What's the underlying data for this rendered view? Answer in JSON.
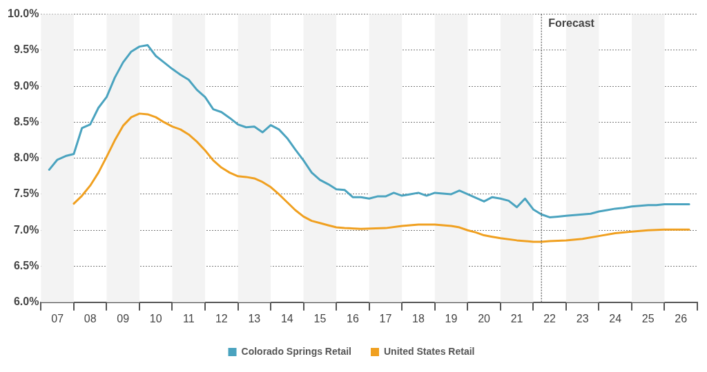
{
  "chart_data": {
    "type": "line",
    "series": [
      {
        "name": "Colorado Springs Retail",
        "color": "#4aa3bf",
        "x": [
          6.75,
          7,
          7.25,
          7.5,
          7.75,
          8,
          8.25,
          8.5,
          8.75,
          9,
          9.25,
          9.5,
          9.75,
          10,
          10.25,
          10.5,
          10.75,
          11,
          11.25,
          11.5,
          11.75,
          12,
          12.25,
          12.5,
          12.75,
          13,
          13.25,
          13.5,
          13.75,
          14,
          14.25,
          14.5,
          14.75,
          15,
          15.25,
          15.5,
          15.75,
          16,
          16.25,
          16.5,
          16.75,
          17,
          17.25,
          17.5,
          17.75,
          18,
          18.25,
          18.5,
          18.75,
          19,
          19.25,
          19.5,
          19.75,
          20,
          20.25,
          20.5,
          20.75,
          21,
          21.25,
          21.5,
          21.75,
          22,
          22.25,
          22.5,
          22.75,
          23,
          23.25,
          23.5,
          23.75,
          24,
          24.25,
          24.5,
          24.75,
          25,
          25.25,
          25.5,
          25.75,
          26,
          26.25
        ],
        "values": [
          7.84,
          7.98,
          8.03,
          8.06,
          8.42,
          8.47,
          8.7,
          8.85,
          9.12,
          9.33,
          9.48,
          9.55,
          9.57,
          9.42,
          9.33,
          9.24,
          9.16,
          9.09,
          8.95,
          8.85,
          8.68,
          8.64,
          8.56,
          8.47,
          8.43,
          8.44,
          8.36,
          8.46,
          8.4,
          8.28,
          8.12,
          7.97,
          7.8,
          7.7,
          7.64,
          7.57,
          7.56,
          7.46,
          7.46,
          7.44,
          7.47,
          7.47,
          7.52,
          7.48,
          7.5,
          7.52,
          7.48,
          7.52,
          7.51,
          7.5,
          7.55,
          7.5,
          7.45,
          7.4,
          7.46,
          7.44,
          7.41,
          7.32,
          7.44,
          7.29,
          7.22,
          7.18,
          7.19,
          7.2,
          7.21,
          7.22,
          7.23,
          7.26,
          7.28,
          7.3,
          7.31,
          7.33,
          7.34,
          7.35,
          7.35,
          7.36,
          7.36,
          7.36,
          7.36
        ]
      },
      {
        "name": "United States Retail",
        "color": "#f0a020",
        "x": [
          7.5,
          7.75,
          8,
          8.25,
          8.5,
          8.75,
          9,
          9.25,
          9.5,
          9.75,
          10,
          10.25,
          10.5,
          10.75,
          11,
          11.25,
          11.5,
          11.75,
          12,
          12.25,
          12.5,
          12.75,
          13,
          13.25,
          13.5,
          13.75,
          14,
          14.25,
          14.5,
          14.75,
          15,
          15.25,
          15.5,
          15.75,
          16.25,
          17,
          17.5,
          18,
          18.5,
          19,
          19.25,
          19.5,
          19.75,
          20,
          20.25,
          20.5,
          21,
          21.5,
          21.75,
          22,
          22.5,
          23,
          23.5,
          24,
          24.5,
          25,
          25.5,
          26.25
        ],
        "values": [
          7.37,
          7.48,
          7.62,
          7.8,
          8.02,
          8.25,
          8.45,
          8.57,
          8.62,
          8.61,
          8.57,
          8.5,
          8.44,
          8.4,
          8.33,
          8.23,
          8.11,
          7.97,
          7.87,
          7.8,
          7.75,
          7.74,
          7.72,
          7.67,
          7.6,
          7.5,
          7.39,
          7.28,
          7.19,
          7.13,
          7.1,
          7.07,
          7.04,
          7.03,
          7.02,
          7.03,
          7.06,
          7.08,
          7.08,
          7.06,
          7.04,
          7.0,
          6.97,
          6.93,
          6.91,
          6.89,
          6.86,
          6.84,
          6.84,
          6.85,
          6.86,
          6.88,
          6.92,
          6.96,
          6.98,
          7.0,
          7.01,
          7.01
        ]
      }
    ],
    "xlim": [
      6.5,
      26.5
    ],
    "xticks": [
      {
        "value": 6.5,
        "label": null
      },
      {
        "value": 7,
        "label": "07"
      },
      {
        "value": 7.5,
        "label": null
      },
      {
        "value": 8,
        "label": "08"
      },
      {
        "value": 8.5,
        "label": null
      },
      {
        "value": 9,
        "label": "09"
      },
      {
        "value": 9.5,
        "label": null
      },
      {
        "value": 10,
        "label": "10"
      },
      {
        "value": 10.5,
        "label": null
      },
      {
        "value": 11,
        "label": "11"
      },
      {
        "value": 11.5,
        "label": null
      },
      {
        "value": 12,
        "label": "12"
      },
      {
        "value": 12.5,
        "label": null
      },
      {
        "value": 13,
        "label": "13"
      },
      {
        "value": 13.5,
        "label": null
      },
      {
        "value": 14,
        "label": "14"
      },
      {
        "value": 14.5,
        "label": null
      },
      {
        "value": 15,
        "label": "15"
      },
      {
        "value": 15.5,
        "label": null
      },
      {
        "value": 16,
        "label": "16"
      },
      {
        "value": 16.5,
        "label": null
      },
      {
        "value": 17,
        "label": "17"
      },
      {
        "value": 17.5,
        "label": null
      },
      {
        "value": 18,
        "label": "18"
      },
      {
        "value": 18.5,
        "label": null
      },
      {
        "value": 19,
        "label": "19"
      },
      {
        "value": 19.5,
        "label": null
      },
      {
        "value": 20,
        "label": "20"
      },
      {
        "value": 20.5,
        "label": null
      },
      {
        "value": 21,
        "label": "21"
      },
      {
        "value": 21.5,
        "label": null
      },
      {
        "value": 22,
        "label": "22"
      },
      {
        "value": 22.5,
        "label": null
      },
      {
        "value": 23,
        "label": "23"
      },
      {
        "value": 23.5,
        "label": null
      },
      {
        "value": 24,
        "label": "24"
      },
      {
        "value": 24.5,
        "label": null
      },
      {
        "value": 25,
        "label": "25"
      },
      {
        "value": 25.5,
        "label": null
      },
      {
        "value": 26,
        "label": "26"
      },
      {
        "value": 26.5,
        "label": null
      }
    ],
    "ylim": [
      6,
      10
    ],
    "yticks": [
      {
        "value": 6,
        "label": "6.0%"
      },
      {
        "value": 6.5,
        "label": "6.5%"
      },
      {
        "value": 7,
        "label": "7.0%"
      },
      {
        "value": 7.5,
        "label": "7.5%"
      },
      {
        "value": 8,
        "label": "8.0%"
      },
      {
        "value": 8.5,
        "label": "8.5%"
      },
      {
        "value": 9,
        "label": "9.0%"
      },
      {
        "value": 9.5,
        "label": "9.5%"
      },
      {
        "value": 10,
        "label": "10.0%"
      }
    ],
    "grid": "y",
    "legend": "bottom",
    "marker": "none",
    "line_style": "solid",
    "ref_lines": [
      {
        "axis": "x",
        "value": 21.75,
        "label": "Forecast",
        "color": "#555555",
        "line_style": "dotted"
      }
    ],
    "bands": [
      {
        "axis": "x",
        "from": 6.5,
        "to": 7.5,
        "label": null,
        "color": "#f3f3f3"
      },
      {
        "axis": "x",
        "from": 8.5,
        "to": 9.5,
        "label": null,
        "color": "#f3f3f3"
      },
      {
        "axis": "x",
        "from": 10.5,
        "to": 11.5,
        "label": null,
        "color": "#f3f3f3"
      },
      {
        "axis": "x",
        "from": 12.5,
        "to": 13.5,
        "label": null,
        "color": "#f3f3f3"
      },
      {
        "axis": "x",
        "from": 14.5,
        "to": 15.5,
        "label": null,
        "color": "#f3f3f3"
      },
      {
        "axis": "x",
        "from": 16.5,
        "to": 17.5,
        "label": null,
        "color": "#f3f3f3"
      },
      {
        "axis": "x",
        "from": 18.5,
        "to": 19.5,
        "label": null,
        "color": "#f3f3f3"
      },
      {
        "axis": "x",
        "from": 20.5,
        "to": 21.5,
        "label": null,
        "color": "#f3f3f3"
      },
      {
        "axis": "x",
        "from": 22.5,
        "to": 23.5,
        "label": null,
        "color": "#f3f3f3"
      },
      {
        "axis": "x",
        "from": 24.5,
        "to": 25.5,
        "label": null,
        "color": "#f3f3f3"
      }
    ]
  }
}
